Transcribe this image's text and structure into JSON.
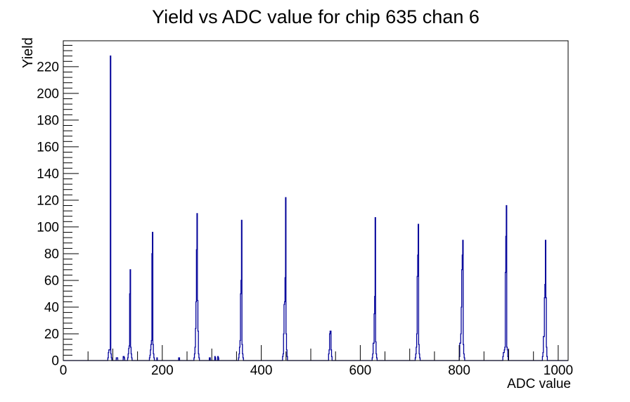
{
  "window": {
    "background": "#ffffff"
  },
  "chart_data": {
    "type": "bar",
    "subtype": "root-1d-histogram-line",
    "title": "Yield vs ADC value for chip 635 chan 6",
    "xlabel": "ADC value",
    "ylabel": "Yield",
    "xlim": [
      0,
      1020
    ],
    "ylim": [
      0,
      239.4
    ],
    "grid": false,
    "legend": "none",
    "line_color": "#000099",
    "axis_color": "#000000",
    "x_major_ticks": [
      0,
      200,
      400,
      600,
      800,
      1000
    ],
    "x_tick_labels": [
      "0",
      "200",
      "400",
      "600",
      "800",
      "1000"
    ],
    "x_minor_step": 50,
    "y_major_step": 20,
    "y_minor_step": 4,
    "y_tick_labels": [
      "0",
      "20",
      "40",
      "60",
      "80",
      "100",
      "120",
      "140",
      "160",
      "180",
      "200",
      "220"
    ],
    "peaks": [
      {
        "adc": 95,
        "yield": 228
      },
      {
        "adc": 135,
        "yield": 68
      },
      {
        "adc": 180,
        "yield": 96
      },
      {
        "adc": 270,
        "yield": 110
      },
      {
        "adc": 360,
        "yield": 105
      },
      {
        "adc": 449,
        "yield": 122
      },
      {
        "adc": 540,
        "yield": 22
      },
      {
        "adc": 630,
        "yield": 107
      },
      {
        "adc": 717,
        "yield": 102
      },
      {
        "adc": 807,
        "yield": 90
      },
      {
        "adc": 895,
        "yield": 116
      },
      {
        "adc": 974,
        "yield": 90
      }
    ],
    "bins": [
      [
        90,
        2
      ],
      [
        91,
        6
      ],
      [
        92,
        8
      ],
      [
        93,
        8
      ],
      [
        94,
        8
      ],
      [
        95,
        228
      ],
      [
        96,
        5
      ],
      [
        97,
        2
      ],
      [
        107,
        2
      ],
      [
        108,
        2
      ],
      [
        109,
        2
      ],
      [
        121,
        3
      ],
      [
        122,
        3
      ],
      [
        123,
        2
      ],
      [
        130,
        2
      ],
      [
        131,
        5
      ],
      [
        132,
        9
      ],
      [
        133,
        11
      ],
      [
        134,
        50
      ],
      [
        135,
        68
      ],
      [
        136,
        10
      ],
      [
        137,
        5
      ],
      [
        138,
        2
      ],
      [
        174,
        2
      ],
      [
        175,
        4
      ],
      [
        176,
        8
      ],
      [
        177,
        12
      ],
      [
        178,
        15
      ],
      [
        179,
        80
      ],
      [
        180,
        96
      ],
      [
        181,
        12
      ],
      [
        182,
        5
      ],
      [
        183,
        2
      ],
      [
        189,
        2
      ],
      [
        233,
        2
      ],
      [
        234,
        2
      ],
      [
        264,
        2
      ],
      [
        265,
        5
      ],
      [
        266,
        10
      ],
      [
        267,
        24
      ],
      [
        268,
        44
      ],
      [
        269,
        83
      ],
      [
        270,
        110
      ],
      [
        271,
        45
      ],
      [
        272,
        22
      ],
      [
        273,
        5
      ],
      [
        274,
        2
      ],
      [
        295,
        2
      ],
      [
        296,
        2
      ],
      [
        306,
        3
      ],
      [
        307,
        2
      ],
      [
        312,
        3
      ],
      [
        313,
        2
      ],
      [
        354,
        2
      ],
      [
        355,
        5
      ],
      [
        356,
        10
      ],
      [
        357,
        15
      ],
      [
        358,
        50
      ],
      [
        359,
        60
      ],
      [
        360,
        105
      ],
      [
        361,
        12
      ],
      [
        362,
        5
      ],
      [
        363,
        2
      ],
      [
        443,
        3
      ],
      [
        444,
        5
      ],
      [
        445,
        20
      ],
      [
        446,
        42
      ],
      [
        447,
        44
      ],
      [
        448,
        62
      ],
      [
        449,
        122
      ],
      [
        450,
        20
      ],
      [
        451,
        8
      ],
      [
        452,
        3
      ],
      [
        536,
        5
      ],
      [
        537,
        8
      ],
      [
        538,
        20
      ],
      [
        539,
        22
      ],
      [
        540,
        22
      ],
      [
        541,
        8
      ],
      [
        542,
        3
      ],
      [
        624,
        2
      ],
      [
        625,
        5
      ],
      [
        626,
        13
      ],
      [
        627,
        13
      ],
      [
        628,
        35
      ],
      [
        629,
        48
      ],
      [
        630,
        107
      ],
      [
        631,
        14
      ],
      [
        632,
        5
      ],
      [
        633,
        2
      ],
      [
        711,
        2
      ],
      [
        712,
        5
      ],
      [
        713,
        10
      ],
      [
        714,
        20
      ],
      [
        715,
        63
      ],
      [
        716,
        79
      ],
      [
        717,
        102
      ],
      [
        718,
        12
      ],
      [
        719,
        5
      ],
      [
        720,
        2
      ],
      [
        800,
        3
      ],
      [
        801,
        13
      ],
      [
        802,
        13
      ],
      [
        803,
        20
      ],
      [
        804,
        40
      ],
      [
        805,
        68
      ],
      [
        806,
        79
      ],
      [
        807,
        90
      ],
      [
        808,
        12
      ],
      [
        809,
        5
      ],
      [
        810,
        2
      ],
      [
        888,
        3
      ],
      [
        889,
        6
      ],
      [
        890,
        6
      ],
      [
        891,
        8
      ],
      [
        892,
        10
      ],
      [
        893,
        66
      ],
      [
        894,
        93
      ],
      [
        895,
        116
      ],
      [
        896,
        10
      ],
      [
        897,
        8
      ],
      [
        898,
        3
      ],
      [
        968,
        3
      ],
      [
        969,
        6
      ],
      [
        970,
        18
      ],
      [
        971,
        18
      ],
      [
        972,
        47
      ],
      [
        973,
        57
      ],
      [
        974,
        90
      ],
      [
        975,
        47
      ],
      [
        976,
        10
      ],
      [
        977,
        3
      ]
    ]
  }
}
